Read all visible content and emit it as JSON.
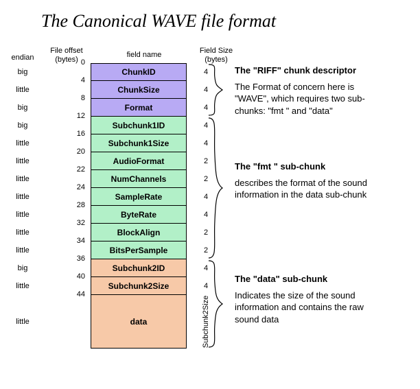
{
  "title": "The Canonical WAVE file format",
  "headers": {
    "endian": "endian",
    "offset_line1": "File offset",
    "offset_line2": "(bytes)",
    "fieldname": "field name",
    "fsize_line1": "Field Size",
    "fsize_line2": "(bytes)"
  },
  "colors": {
    "riff": "#b8aaf4",
    "fmt": "#b2f0c8",
    "data": "#f7c9a8",
    "border": "#000000",
    "bg": "#ffffff"
  },
  "row_heights": {
    "normal": 26,
    "data": 78
  },
  "rows": [
    {
      "endian": "big",
      "offset": "0",
      "name": "ChunkID",
      "size": "4",
      "section": "riff"
    },
    {
      "endian": "little",
      "offset": "4",
      "name": "ChunkSize",
      "size": "4",
      "section": "riff"
    },
    {
      "endian": "big",
      "offset": "8",
      "name": "Format",
      "size": "4",
      "section": "riff"
    },
    {
      "endian": "big",
      "offset": "12",
      "name": "Subchunk1ID",
      "size": "4",
      "section": "fmt"
    },
    {
      "endian": "little",
      "offset": "16",
      "name": "Subchunk1Size",
      "size": "4",
      "section": "fmt"
    },
    {
      "endian": "little",
      "offset": "20",
      "name": "AudioFormat",
      "size": "2",
      "section": "fmt"
    },
    {
      "endian": "little",
      "offset": "22",
      "name": "NumChannels",
      "size": "2",
      "section": "fmt"
    },
    {
      "endian": "little",
      "offset": "24",
      "name": "SampleRate",
      "size": "4",
      "section": "fmt"
    },
    {
      "endian": "little",
      "offset": "28",
      "name": "ByteRate",
      "size": "4",
      "section": "fmt"
    },
    {
      "endian": "little",
      "offset": "32",
      "name": "BlockAlign",
      "size": "2",
      "section": "fmt"
    },
    {
      "endian": "little",
      "offset": "34",
      "name": "BitsPerSample",
      "size": "2",
      "section": "fmt"
    },
    {
      "endian": "big",
      "offset": "36",
      "name": "Subchunk2ID",
      "size": "4",
      "section": "data"
    },
    {
      "endian": "little",
      "offset": "40",
      "name": "Subchunk2Size",
      "size": "4",
      "section": "data"
    },
    {
      "endian": "little",
      "offset": "44",
      "name": "data",
      "size": "Subchunk2Size",
      "section": "data",
      "tall": true,
      "size_rotated": true
    }
  ],
  "groups": [
    {
      "id": "riff",
      "heading": "The \"RIFF\" chunk descriptor",
      "body": "The Format of concern here is \"WAVE\", which requires two sub-chunks: \"fmt \" and \"data\""
    },
    {
      "id": "fmt",
      "heading": "The \"fmt \" sub-chunk",
      "body": "describes the format of the sound information in the data sub-chunk"
    },
    {
      "id": "data",
      "heading": "The \"data\" sub-chunk",
      "body": "Indicates the size of the sound information and contains the raw sound data"
    }
  ]
}
